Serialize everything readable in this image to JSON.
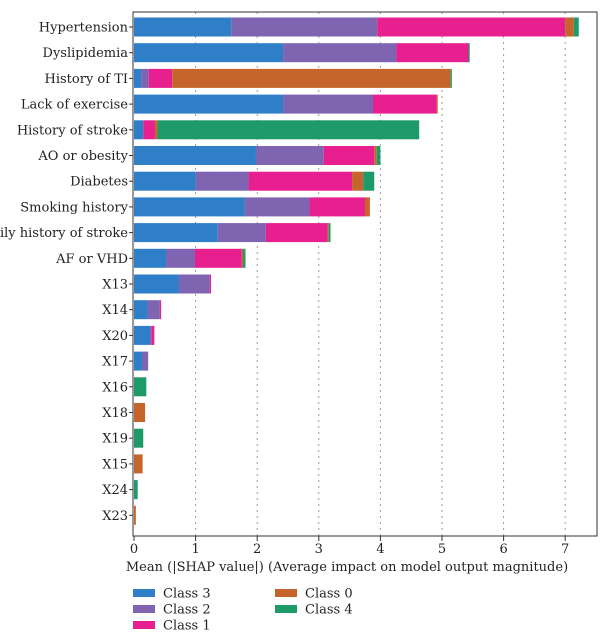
{
  "chart_data": {
    "type": "bar",
    "orientation": "horizontal",
    "stacked": true,
    "xlabel": "Mean (|SHAP value|) (Average impact on model output magnitude)",
    "xlim": [
      0,
      7.5
    ],
    "xticks": [
      "0",
      "1",
      "2",
      "3",
      "4",
      "5",
      "6",
      "7"
    ],
    "grid": "vertical dotted",
    "legend_position": "bottom-left",
    "categories": [
      "Hypertension",
      "Dyslipidemia",
      "History of TI",
      "Lack of exercise",
      "History of stroke",
      "AO or obesity",
      "Diabetes",
      "Smoking history",
      "Family history of stroke",
      "AF or VHD",
      "X13",
      "X14",
      "X20",
      "X17",
      "X16",
      "X18",
      "X19",
      "X15",
      "X24",
      "X23"
    ],
    "series": [
      {
        "name": "Class 3",
        "color": "#2f7fc8",
        "values": [
          1.58,
          2.42,
          0.12,
          2.42,
          0.15,
          1.98,
          1.0,
          1.8,
          1.36,
          0.52,
          0.73,
          0.22,
          0.26,
          0.13,
          0.0,
          0.0,
          0.0,
          0.0,
          0.0,
          0.0
        ]
      },
      {
        "name": "Class 2",
        "color": "#7f64b2",
        "values": [
          2.37,
          1.84,
          0.12,
          1.46,
          0.0,
          1.1,
          0.86,
          1.05,
          0.78,
          0.47,
          0.5,
          0.2,
          0.02,
          0.1,
          0.0,
          0.0,
          0.0,
          0.0,
          0.0,
          0.0
        ]
      },
      {
        "name": "Class 1",
        "color": "#e71f8f",
        "values": [
          3.05,
          1.17,
          0.38,
          1.03,
          0.19,
          0.82,
          1.68,
          0.9,
          1.0,
          0.76,
          0.02,
          0.02,
          0.05,
          0.0,
          0.0,
          0.0,
          0.0,
          0.0,
          0.0,
          0.0
        ]
      },
      {
        "name": "Class 0",
        "color": "#c5652c",
        "values": [
          0.14,
          0.0,
          4.52,
          0.02,
          0.04,
          0.04,
          0.18,
          0.08,
          0.02,
          0.02,
          0.0,
          0.0,
          0.0,
          0.0,
          0.0,
          0.18,
          0.0,
          0.14,
          0.0,
          0.03
        ]
      },
      {
        "name": "Class 4",
        "color": "#1e9a69",
        "values": [
          0.08,
          0.02,
          0.02,
          0.0,
          4.25,
          0.06,
          0.18,
          0.0,
          0.03,
          0.04,
          0.0,
          0.0,
          0.0,
          0.0,
          0.2,
          0.0,
          0.15,
          0.0,
          0.06,
          0.0
        ]
      }
    ],
    "legend_order": [
      "Class 3",
      "Class 2",
      "Class 1",
      "Class 0",
      "Class 4"
    ]
  }
}
